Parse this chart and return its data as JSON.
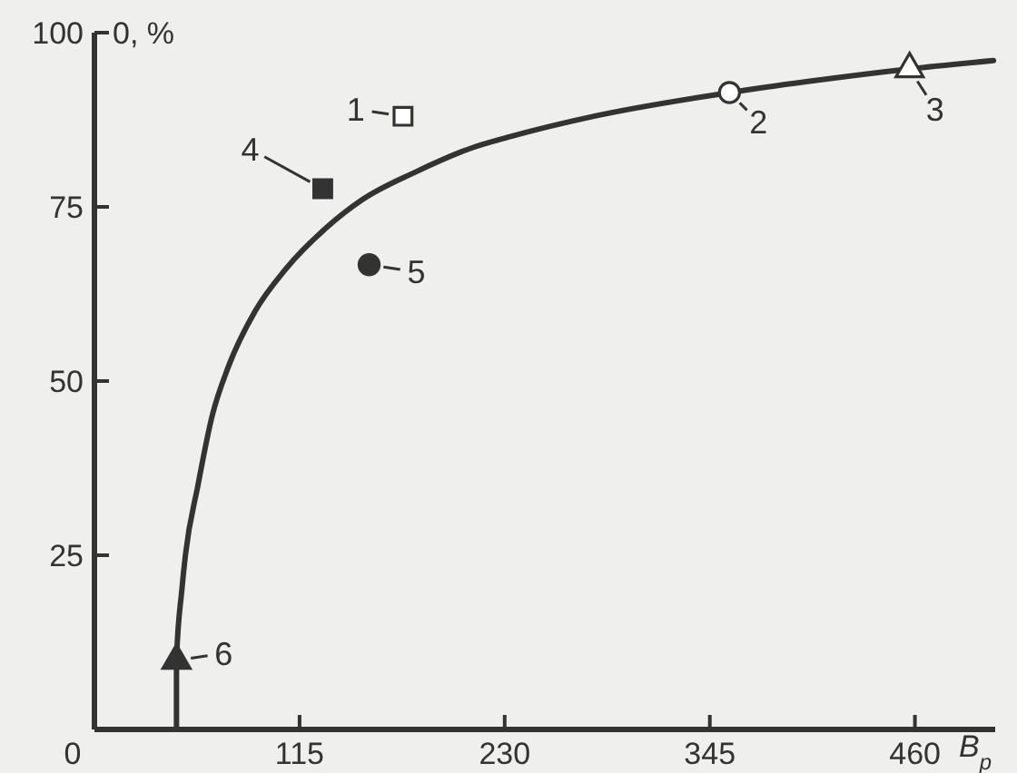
{
  "chart_data": {
    "type": "scatter",
    "xlabel": "B$_{p}$",
    "ylabel": "0, %",
    "xlim": [
      0,
      505
    ],
    "ylim": [
      0,
      100
    ],
    "xticks": [
      0,
      115,
      230,
      345,
      460
    ],
    "yticks": [
      25,
      50,
      75,
      100
    ],
    "grid": false,
    "series": [
      {
        "type": "line",
        "color": "#333333",
        "marker": "none",
        "line_style": "solid",
        "x": [
          46,
          46,
          49,
          51,
          58,
          66,
          75,
          90,
          107,
          130,
          150,
          180,
          212,
          232,
          280,
          356,
          400,
          457,
          504
        ],
        "values": [
          0,
          10,
          20,
          25,
          35,
          45,
          52,
          60,
          66,
          72,
          76,
          80,
          83.5,
          85,
          88,
          91.4,
          93,
          94.8,
          96
        ]
      },
      {
        "color": "#ffffff",
        "marker": "square",
        "x": [
          173
        ],
        "values": [
          88
        ]
      },
      {
        "color": "#ffffff",
        "marker": "circle",
        "x": [
          356
        ],
        "values": [
          91.4
        ]
      },
      {
        "color": "#ffffff",
        "marker": "triangle",
        "x": [
          457
        ],
        "values": [
          94.8
        ]
      },
      {
        "color": "#333333",
        "marker": "square",
        "x": [
          128
        ],
        "values": [
          77.6
        ]
      },
      {
        "color": "#333333",
        "marker": "circle",
        "x": [
          154
        ],
        "values": [
          66.7
        ]
      },
      {
        "color": "#333333",
        "marker": "triangle",
        "x": [
          46
        ],
        "values": [
          9.9
        ]
      }
    ],
    "annotations": [
      {
        "text": "1",
        "x": 173,
        "y": 88
      },
      {
        "text": "2",
        "x": 356,
        "y": 91.4
      },
      {
        "text": "3",
        "x": 457,
        "y": 94.8
      },
      {
        "text": "4",
        "x": 128,
        "y": 77.6
      },
      {
        "text": "5",
        "x": 154,
        "y": 66.7
      },
      {
        "text": "6",
        "x": 46,
        "y": 9.9
      }
    ]
  }
}
